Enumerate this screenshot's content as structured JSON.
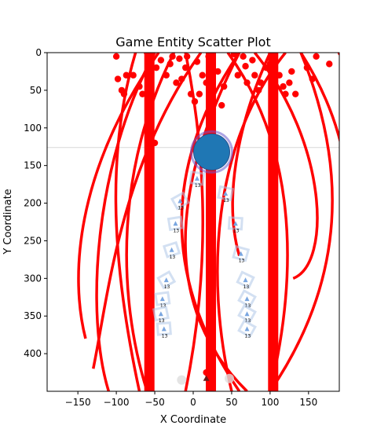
{
  "chart_data": {
    "type": "scatter",
    "title": "Game Entity Scatter Plot",
    "xlabel": "X Coordinate",
    "ylabel": "Y Coordinate",
    "xlim": [
      -190,
      190
    ],
    "ylim": [
      450,
      0
    ],
    "y_inverted": true,
    "grid": false,
    "x_ticks": [
      -150,
      -100,
      -50,
      0,
      50,
      100,
      150
    ],
    "y_ticks": [
      0,
      50,
      100,
      150,
      200,
      250,
      300,
      350,
      400
    ],
    "colors": {
      "red": "#ff0000",
      "blue_circle": "#1f77b4",
      "purple_ring": "#6a5acd",
      "light_blue": "#aec7e8",
      "grey_dot": "#dddddd",
      "hline": "#dddddd"
    },
    "horizontal_line_y": 126,
    "vertical_bars_x": [
      -57,
      23,
      104
    ],
    "big_circle": {
      "x": 24,
      "y": 132
    },
    "red_points": [
      [
        -100,
        5
      ],
      [
        -87,
        30
      ],
      [
        -98,
        35
      ],
      [
        -93,
        50
      ],
      [
        -90,
        55
      ],
      [
        -78,
        30
      ],
      [
        -70,
        45
      ],
      [
        -66,
        55
      ],
      [
        -60,
        0
      ],
      [
        -55,
        5
      ],
      [
        -48,
        20
      ],
      [
        -42,
        10
      ],
      [
        -35,
        30
      ],
      [
        -30,
        15
      ],
      [
        -27,
        5
      ],
      [
        -22,
        40
      ],
      [
        -18,
        8
      ],
      [
        -15,
        35
      ],
      [
        -10,
        20
      ],
      [
        -8,
        5
      ],
      [
        -3,
        55
      ],
      [
        2,
        65
      ],
      [
        5,
        12
      ],
      [
        8,
        55
      ],
      [
        12,
        30
      ],
      [
        17,
        40
      ],
      [
        20,
        5
      ],
      [
        32,
        25
      ],
      [
        37,
        70
      ],
      [
        40,
        45
      ],
      [
        53,
        2
      ],
      [
        58,
        30
      ],
      [
        65,
        5
      ],
      [
        68,
        18
      ],
      [
        70,
        40
      ],
      [
        77,
        10
      ],
      [
        80,
        30
      ],
      [
        85,
        50
      ],
      [
        88,
        40
      ],
      [
        95,
        20
      ],
      [
        100,
        15
      ],
      [
        105,
        25
      ],
      [
        112,
        30
      ],
      [
        117,
        45
      ],
      [
        120,
        55
      ],
      [
        125,
        40
      ],
      [
        128,
        25
      ],
      [
        133,
        55
      ],
      [
        148,
        20
      ],
      [
        155,
        35
      ],
      [
        160,
        5
      ],
      [
        177,
        15
      ],
      [
        192,
        0
      ],
      [
        -50,
        120
      ],
      [
        17,
        425
      ],
      [
        20,
        430
      ]
    ],
    "red_curves": [
      [
        [
          -75,
          0
        ],
        [
          -110,
          120
        ],
        [
          -110,
          260
        ],
        [
          -70,
          450
        ]
      ],
      [
        [
          -45,
          0
        ],
        [
          -155,
          160
        ],
        [
          -160,
          300
        ],
        [
          -140,
          380
        ]
      ],
      [
        [
          -25,
          0
        ],
        [
          -100,
          150
        ],
        [
          -100,
          320
        ],
        [
          -60,
          450
        ]
      ],
      [
        [
          -10,
          0
        ],
        [
          20,
          150
        ],
        [
          20,
          300
        ],
        [
          -10,
          450
        ]
      ],
      [
        [
          10,
          0
        ],
        [
          -95,
          150
        ],
        [
          -110,
          320
        ],
        [
          -130,
          420
        ]
      ],
      [
        [
          45,
          0
        ],
        [
          130,
          120
        ],
        [
          140,
          280
        ],
        [
          100,
          450
        ]
      ],
      [
        [
          60,
          0
        ],
        [
          -40,
          200
        ],
        [
          -30,
          350
        ],
        [
          70,
          450
        ]
      ],
      [
        [
          80,
          0
        ],
        [
          175,
          120
        ],
        [
          180,
          280
        ],
        [
          130,
          300
        ]
      ],
      [
        [
          120,
          0
        ],
        [
          25,
          120
        ],
        [
          15,
          300
        ],
        [
          50,
          450
        ]
      ],
      [
        [
          140,
          0
        ],
        [
          190,
          80
        ],
        [
          200,
          150
        ],
        [
          200,
          180
        ]
      ],
      [
        [
          100,
          0
        ],
        [
          55,
          100
        ],
        [
          40,
          200
        ],
        [
          60,
          270
        ]
      ],
      [
        [
          -50,
          0
        ],
        [
          -130,
          150
        ],
        [
          -140,
          350
        ],
        [
          -110,
          450
        ]
      ],
      [
        [
          60,
          450
        ],
        [
          -40,
          300
        ],
        [
          -40,
          150
        ],
        [
          60,
          0
        ]
      ],
      [
        [
          100,
          450
        ],
        [
          200,
          300
        ],
        [
          200,
          150
        ],
        [
          140,
          0
        ]
      ]
    ],
    "light_blue_markers": [
      {
        "x": -17,
        "y": 200,
        "label": "13"
      },
      {
        "x": -23,
        "y": 230,
        "label": "13"
      },
      {
        "x": -28,
        "y": 265,
        "label": "13"
      },
      {
        "x": -35,
        "y": 305,
        "label": "13"
      },
      {
        "x": -40,
        "y": 330,
        "label": "13"
      },
      {
        "x": -42,
        "y": 350,
        "label": "13"
      },
      {
        "x": -38,
        "y": 370,
        "label": "13"
      },
      {
        "x": 5,
        "y": 170,
        "label": "13"
      },
      {
        "x": 42,
        "y": 190,
        "label": "13"
      },
      {
        "x": 55,
        "y": 230,
        "label": "13"
      },
      {
        "x": 62,
        "y": 270,
        "label": "13"
      },
      {
        "x": 68,
        "y": 305,
        "label": "13"
      },
      {
        "x": 70,
        "y": 330,
        "label": "13"
      },
      {
        "x": 70,
        "y": 350,
        "label": "13"
      },
      {
        "x": 70,
        "y": 370,
        "label": "13"
      }
    ],
    "grey_dots": [
      {
        "x": -15,
        "y": 435
      },
      {
        "x": 47,
        "y": 433
      }
    ],
    "dark_marker": {
      "x": 17,
      "y": 433
    }
  }
}
